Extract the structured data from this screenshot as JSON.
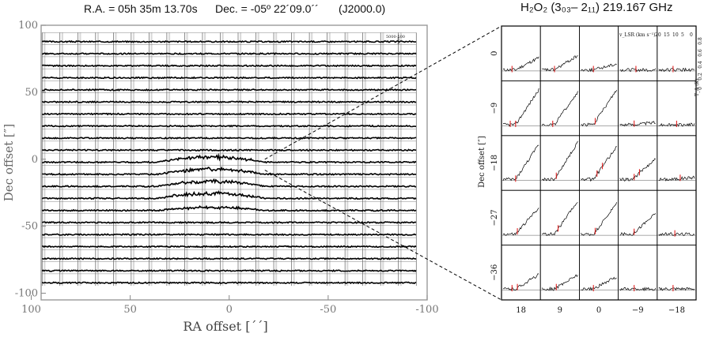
{
  "header": {
    "ra": "R.A. = 05h 35m 13.70s",
    "dec": "Dec. = -05º 22´09.0´´",
    "epoch": "(J2000.0)",
    "line_title": "H₂O₂ (3₀₃– 2₁₁) 219.167 GHz"
  },
  "chart_data": [
    {
      "type": "line",
      "panel": "left-map",
      "xlabel": "RA offset [´´]",
      "ylabel": "Dec offset  [″]",
      "xlim": [
        95,
        -100
      ],
      "ylim": [
        -105,
        100
      ],
      "x_ticks": [
        100,
        50,
        0,
        -50,
        -100
      ],
      "y_ticks": [
        100,
        50,
        0,
        -50,
        -100
      ],
      "x_tick_labels": [
        "100",
        "50",
        "0",
        "-50",
        "-100"
      ],
      "y_tick_labels": [
        "100",
        "50",
        "0",
        "-50",
        "-100"
      ],
      "grid_ra_offsets": [
        90,
        81,
        72,
        63,
        54,
        45,
        36,
        27,
        18,
        9,
        0,
        -9,
        -18,
        -27,
        -36,
        -45,
        -54,
        -63,
        -72,
        -81,
        -90
      ],
      "grid_dec_offsets": [
        90,
        81,
        72,
        63,
        54,
        45,
        36,
        27,
        18,
        9,
        0,
        -9,
        -18,
        -27,
        -36,
        -45,
        -54,
        -63,
        -72,
        -81,
        -90
      ],
      "corner_label": "5000-500",
      "corner_label_2": "0.18",
      "emission_region": {
        "ra_range": [
          36,
          -18
        ],
        "dec_range": [
          0,
          -36
        ]
      }
    },
    {
      "type": "line",
      "panel": "right-zoom",
      "xlabel": "",
      "ylabel": "Dec offset  [″]",
      "ra_offsets": [
        18,
        9,
        0,
        -9,
        -18
      ],
      "dec_offsets": [
        0,
        -9,
        -18,
        -27,
        -36
      ],
      "x_tick_labels": [
        "18",
        "9",
        "0",
        "−9",
        "−18"
      ],
      "y_tick_labels": [
        "0",
        "−9",
        "−18",
        "−27",
        "−36"
      ],
      "velocity_label": "v_LSR (km s⁻¹)",
      "velocity_ticks": [
        "20",
        "15",
        "10",
        "5",
        "0"
      ],
      "intensity_label": "T_A (K)",
      "intensity_ticks": [
        "0.8",
        "0.6",
        "0.4",
        "0.2",
        "0"
      ],
      "slope": [
        [
          0.3,
          0.35,
          0.15,
          0.0,
          0.0
        ],
        [
          0.85,
          0.8,
          0.85,
          0.05,
          0.0
        ],
        [
          0.85,
          0.9,
          0.8,
          0.5,
          0.05
        ],
        [
          0.65,
          0.8,
          0.75,
          0.5,
          0.0
        ],
        [
          0.35,
          0.35,
          0.3,
          0.0,
          0.0
        ]
      ],
      "markers": [
        [
          [
            0.25
          ],
          [
            0.35
          ],
          [
            0.35
          ],
          [
            0.45
          ],
          [
            0.4
          ]
        ],
        [
          [
            0.2,
            0.35
          ],
          [
            0.3
          ],
          [
            0.4
          ],
          [
            0.4
          ],
          [
            0.5
          ]
        ],
        [
          [
            0.35
          ],
          [
            0.4
          ],
          [
            0.45,
            0.6
          ],
          [
            0.4,
            0.55
          ],
          [
            0.6
          ]
        ],
        [
          [
            0.4
          ],
          [
            0.45
          ],
          [
            0.4
          ],
          [
            0.4
          ],
          [
            0.45
          ]
        ],
        [
          [
            0.25,
            0.4
          ],
          [
            0.4
          ],
          [
            0.35
          ],
          [
            0.4
          ],
          [
            0.4
          ]
        ]
      ]
    }
  ]
}
